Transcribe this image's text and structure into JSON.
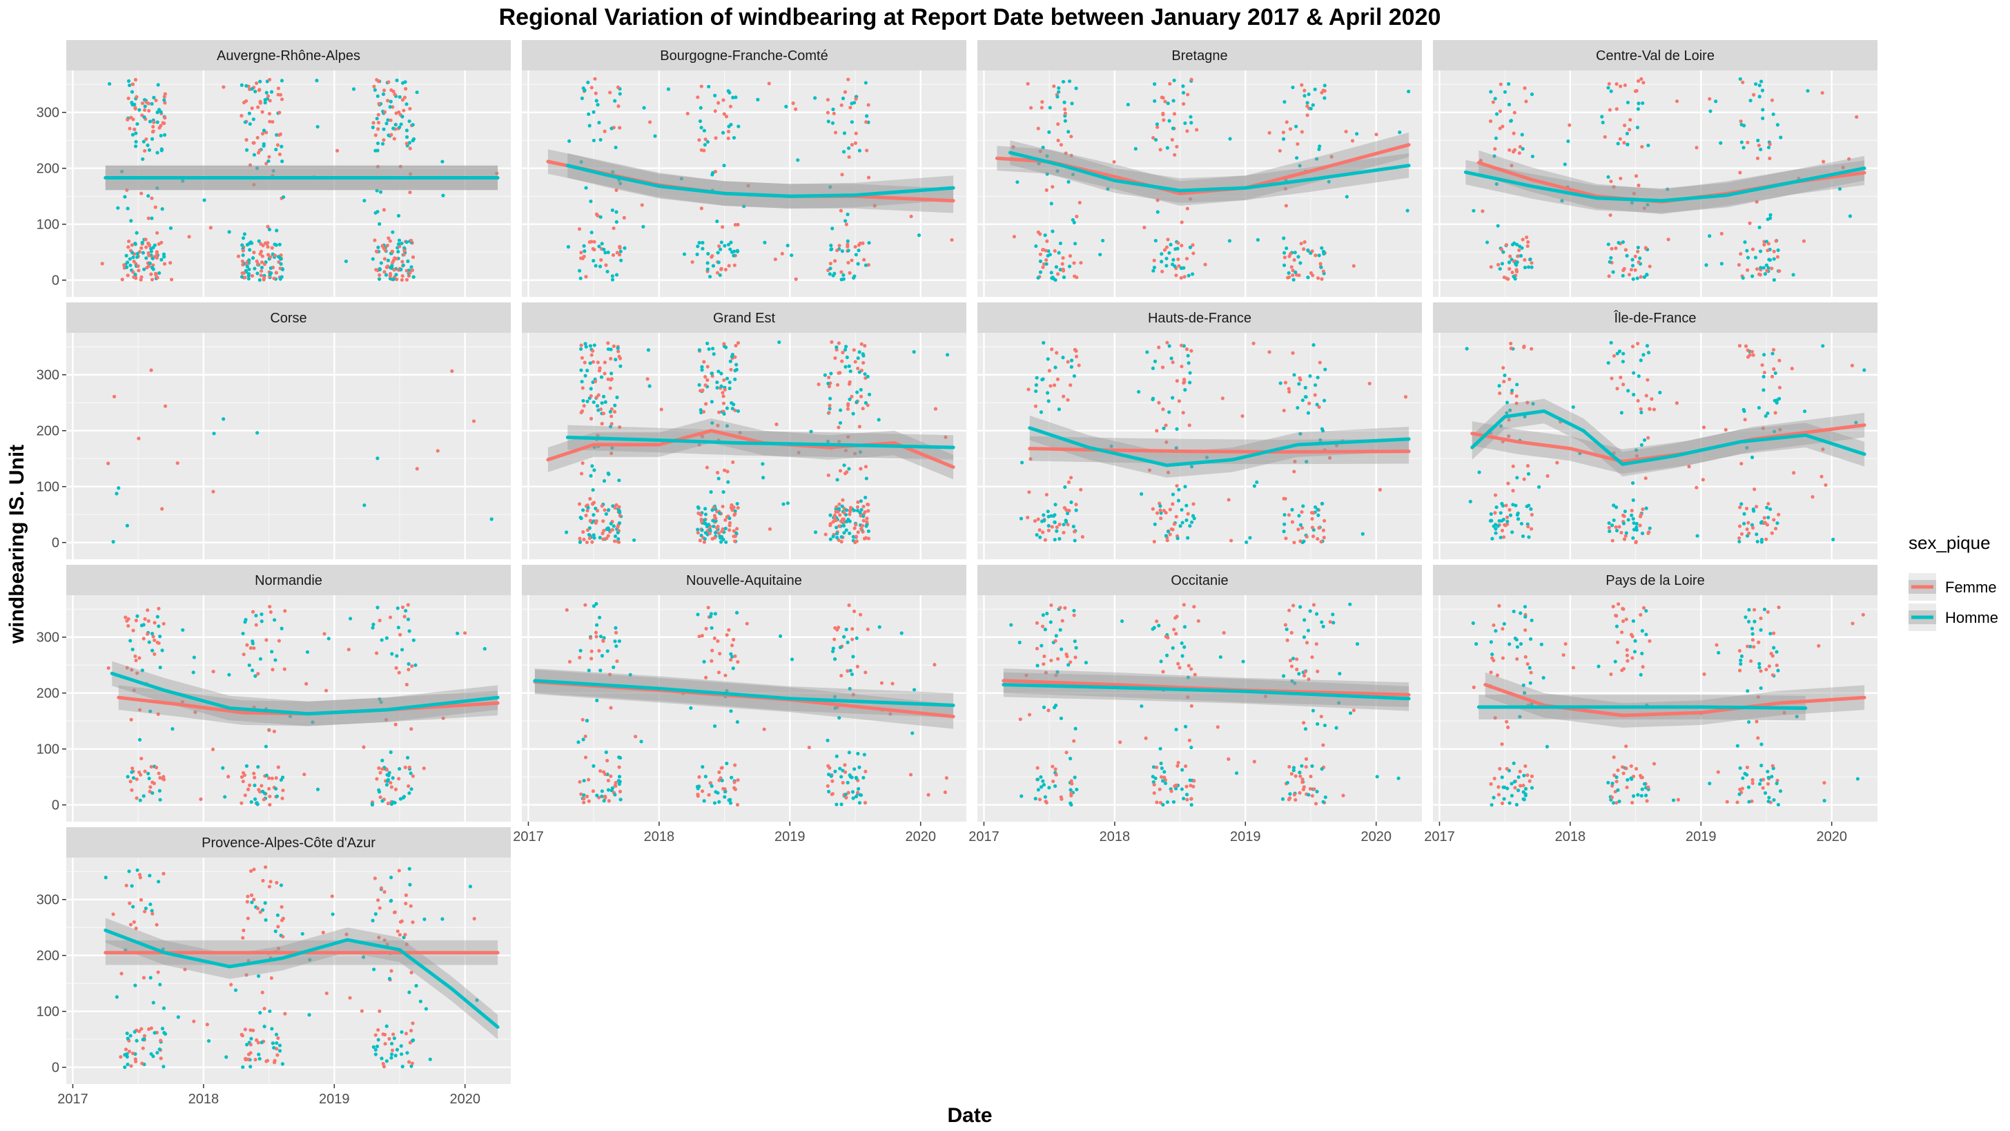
{
  "chart_data": {
    "type": "scatter",
    "title": "Regional Variation of  windbearing  at Report Date between January 2017 & April 2020",
    "xlabel": "Date",
    "ylabel": "windbearing  IS. Unit",
    "x_ticks": [
      "2017",
      "2018",
      "2019",
      "2020"
    ],
    "x_range": [
      2016.95,
      2020.35
    ],
    "y_ticks": [
      "0",
      "100",
      "200",
      "300"
    ],
    "y_range": [
      -30,
      375
    ],
    "grid": true,
    "smooth": "loess with grey confidence band",
    "legend": {
      "title": "sex_pique",
      "position": "right",
      "entries": [
        {
          "label": "Femme",
          "color": "#F8766D"
        },
        {
          "label": "Homme",
          "color": "#00BFC4"
        }
      ]
    },
    "colors": {
      "Femme": "#F8766D",
      "Homme": "#00BFC4"
    },
    "panels": [
      {
        "name": "Auvergne-Rhône-Alpes",
        "femme": [
          [
            2017.25,
            183
          ],
          [
            2020.25,
            183
          ]
        ],
        "homme": [
          [
            2017.25,
            183
          ],
          [
            2020.25,
            183
          ]
        ]
      },
      {
        "name": "Bourgogne-Franche-Comté",
        "femme": [
          [
            2017.15,
            212
          ],
          [
            2017.5,
            195
          ],
          [
            2018,
            170
          ],
          [
            2018.5,
            155
          ],
          [
            2019,
            150
          ],
          [
            2019.5,
            150
          ],
          [
            2020.25,
            142
          ]
        ],
        "homme": [
          [
            2017.3,
            205
          ],
          [
            2017.6,
            188
          ],
          [
            2018,
            168
          ],
          [
            2018.5,
            155
          ],
          [
            2019,
            150
          ],
          [
            2019.5,
            152
          ],
          [
            2020.25,
            165
          ]
        ]
      },
      {
        "name": "Bretagne",
        "femme": [
          [
            2017.1,
            218
          ],
          [
            2017.5,
            212
          ],
          [
            2018,
            185
          ],
          [
            2018.5,
            155
          ],
          [
            2019,
            165
          ],
          [
            2019.5,
            195
          ],
          [
            2020.25,
            242
          ]
        ],
        "homme": [
          [
            2017.2,
            228
          ],
          [
            2017.6,
            205
          ],
          [
            2018,
            178
          ],
          [
            2018.5,
            160
          ],
          [
            2019,
            165
          ],
          [
            2019.5,
            180
          ],
          [
            2020.25,
            205
          ]
        ]
      },
      {
        "name": "Centre-Val de Loire",
        "femme": [
          [
            2017.3,
            210
          ],
          [
            2017.7,
            180
          ],
          [
            2018.2,
            150
          ],
          [
            2018.7,
            140
          ],
          [
            2019.2,
            155
          ],
          [
            2019.7,
            175
          ],
          [
            2020.25,
            192
          ]
        ],
        "homme": [
          [
            2017.2,
            193
          ],
          [
            2017.7,
            168
          ],
          [
            2018.2,
            147
          ],
          [
            2018.7,
            142
          ],
          [
            2019.2,
            152
          ],
          [
            2019.7,
            175
          ],
          [
            2020.25,
            200
          ]
        ]
      },
      {
        "name": "Corse",
        "femme": [],
        "homme": []
      },
      {
        "name": "Grand Est",
        "femme": [
          [
            2017.15,
            148
          ],
          [
            2017.5,
            175
          ],
          [
            2018,
            175
          ],
          [
            2018.4,
            200
          ],
          [
            2018.8,
            178
          ],
          [
            2019.3,
            170
          ],
          [
            2019.8,
            178
          ],
          [
            2020.25,
            135
          ]
        ],
        "homme": [
          [
            2017.3,
            188
          ],
          [
            2018,
            183
          ],
          [
            2018.6,
            178
          ],
          [
            2019.3,
            175
          ],
          [
            2020.25,
            170
          ]
        ]
      },
      {
        "name": "Hauts-de-France",
        "femme": [
          [
            2017.35,
            168
          ],
          [
            2018,
            165
          ],
          [
            2018.6,
            163
          ],
          [
            2019.2,
            162
          ],
          [
            2020.25,
            163
          ]
        ],
        "homme": [
          [
            2017.35,
            205
          ],
          [
            2017.8,
            170
          ],
          [
            2018.4,
            138
          ],
          [
            2018.9,
            148
          ],
          [
            2019.4,
            175
          ],
          [
            2020.25,
            185
          ]
        ]
      },
      {
        "name": "Île-de-France",
        "femme": [
          [
            2017.25,
            195
          ],
          [
            2017.6,
            180
          ],
          [
            2018,
            168
          ],
          [
            2018.4,
            145
          ],
          [
            2018.9,
            160
          ],
          [
            2019.4,
            185
          ],
          [
            2020.25,
            210
          ]
        ],
        "homme": [
          [
            2017.25,
            170
          ],
          [
            2017.5,
            225
          ],
          [
            2017.8,
            235
          ],
          [
            2018.1,
            200
          ],
          [
            2018.4,
            140
          ],
          [
            2018.8,
            155
          ],
          [
            2019.3,
            180
          ],
          [
            2019.8,
            192
          ],
          [
            2020.25,
            158
          ]
        ]
      },
      {
        "name": "Normandie",
        "femme": [
          [
            2017.35,
            192
          ],
          [
            2017.8,
            180
          ],
          [
            2018.3,
            165
          ],
          [
            2018.8,
            163
          ],
          [
            2019.4,
            170
          ],
          [
            2020.25,
            182
          ]
        ],
        "homme": [
          [
            2017.3,
            235
          ],
          [
            2017.7,
            205
          ],
          [
            2018.2,
            173
          ],
          [
            2018.8,
            163
          ],
          [
            2019.4,
            170
          ],
          [
            2020.25,
            192
          ]
        ]
      },
      {
        "name": "Nouvelle-Aquitaine",
        "femme": [
          [
            2017.05,
            220
          ],
          [
            2018,
            205
          ],
          [
            2019,
            188
          ],
          [
            2020.25,
            158
          ]
        ],
        "homme": [
          [
            2017.05,
            222
          ],
          [
            2018,
            208
          ],
          [
            2019,
            190
          ],
          [
            2020.25,
            178
          ]
        ]
      },
      {
        "name": "Occitanie",
        "femme": [
          [
            2017.15,
            222
          ],
          [
            2018,
            215
          ],
          [
            2019,
            205
          ],
          [
            2020.25,
            197
          ]
        ],
        "homme": [
          [
            2017.15,
            215
          ],
          [
            2018,
            210
          ],
          [
            2019,
            203
          ],
          [
            2020.25,
            190
          ]
        ]
      },
      {
        "name": "Pays de la Loire",
        "femme": [
          [
            2017.35,
            215
          ],
          [
            2017.8,
            178
          ],
          [
            2018.4,
            160
          ],
          [
            2019,
            165
          ],
          [
            2019.6,
            182
          ],
          [
            2020.25,
            192
          ]
        ],
        "homme": [
          [
            2017.3,
            175
          ],
          [
            2018,
            175
          ],
          [
            2019,
            175
          ],
          [
            2019.8,
            173
          ]
        ]
      },
      {
        "name": "Provence-Alpes-Côte d'Azur",
        "femme": [
          [
            2017.25,
            205
          ],
          [
            2020.25,
            205
          ]
        ],
        "homme": [
          [
            2017.25,
            245
          ],
          [
            2017.7,
            205
          ],
          [
            2018.2,
            180
          ],
          [
            2018.6,
            195
          ],
          [
            2019.1,
            228
          ],
          [
            2019.5,
            210
          ],
          [
            2019.9,
            140
          ],
          [
            2020.25,
            72
          ]
        ]
      }
    ]
  }
}
